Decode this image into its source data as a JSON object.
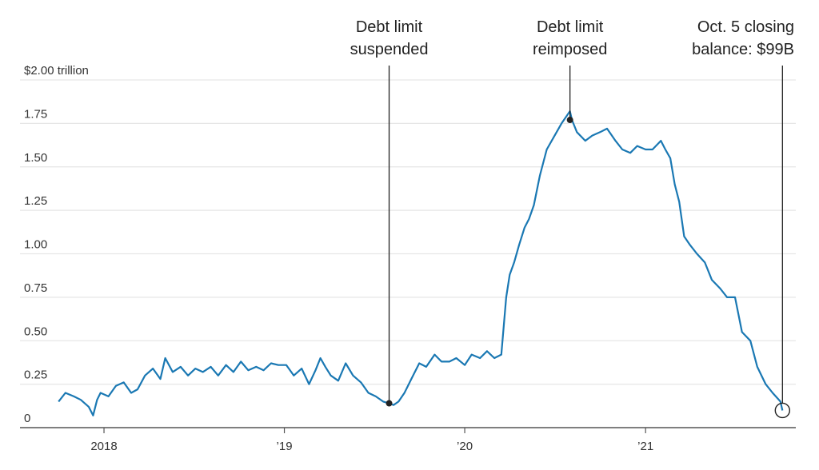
{
  "chart_data": {
    "type": "line",
    "title": "",
    "xlabel": "",
    "ylabel": "",
    "yunit_label": "$2.00 trillion",
    "ylim": [
      0,
      2.0
    ],
    "yticks": [
      {
        "value": 2.0,
        "label": "$2.00 trillion"
      },
      {
        "value": 1.75,
        "label": "1.75"
      },
      {
        "value": 1.5,
        "label": "1.50"
      },
      {
        "value": 1.25,
        "label": "1.25"
      },
      {
        "value": 1.0,
        "label": "1.00"
      },
      {
        "value": 0.75,
        "label": "0.75"
      },
      {
        "value": 0.5,
        "label": "0.50"
      },
      {
        "value": 0.25,
        "label": "0.25"
      },
      {
        "value": 0,
        "label": "0"
      }
    ],
    "xlim": [
      "2017-07-15",
      "2021-11-01"
    ],
    "xticks": [
      {
        "date": "2018-01-01",
        "label": "2018"
      },
      {
        "date": "2019-01-01",
        "label": "’19"
      },
      {
        "date": "2020-01-01",
        "label": "’20"
      },
      {
        "date": "2021-01-01",
        "label": "’21"
      }
    ],
    "grid": true,
    "series": [
      {
        "color": "#1a78b3",
        "x": [
          "2017-10-01",
          "2017-10-15",
          "2017-11-01",
          "2017-11-15",
          "2017-12-01",
          "2017-12-10",
          "2017-12-18",
          "2017-12-25",
          "2018-01-10",
          "2018-01-25",
          "2018-02-10",
          "2018-02-25",
          "2018-03-10",
          "2018-03-25",
          "2018-04-10",
          "2018-04-25",
          "2018-05-05",
          "2018-05-20",
          "2018-06-05",
          "2018-06-20",
          "2018-07-05",
          "2018-07-20",
          "2018-08-05",
          "2018-08-20",
          "2018-09-05",
          "2018-09-20",
          "2018-10-05",
          "2018-10-20",
          "2018-11-05",
          "2018-11-20",
          "2018-12-05",
          "2018-12-20",
          "2019-01-05",
          "2019-01-20",
          "2019-02-05",
          "2019-02-20",
          "2019-03-05",
          "2019-03-15",
          "2019-03-25",
          "2019-04-05",
          "2019-04-20",
          "2019-05-05",
          "2019-05-20",
          "2019-06-05",
          "2019-06-20",
          "2019-07-05",
          "2019-07-20",
          "2019-08-01",
          "2019-08-10",
          "2019-08-20",
          "2019-09-01",
          "2019-09-15",
          "2019-10-01",
          "2019-10-15",
          "2019-11-01",
          "2019-11-15",
          "2019-12-01",
          "2019-12-15",
          "2020-01-01",
          "2020-01-15",
          "2020-02-01",
          "2020-02-15",
          "2020-03-01",
          "2020-03-15",
          "2020-03-25",
          "2020-04-01",
          "2020-04-10",
          "2020-04-20",
          "2020-05-01",
          "2020-05-10",
          "2020-05-20",
          "2020-06-01",
          "2020-06-15",
          "2020-07-01",
          "2020-07-15",
          "2020-08-01",
          "2020-08-05",
          "2020-08-15",
          "2020-09-01",
          "2020-09-15",
          "2020-10-01",
          "2020-10-15",
          "2020-11-01",
          "2020-11-15",
          "2020-12-01",
          "2020-12-15",
          "2021-01-01",
          "2021-01-15",
          "2021-02-01",
          "2021-02-10",
          "2021-02-20",
          "2021-03-01",
          "2021-03-10",
          "2021-03-20",
          "2021-04-01",
          "2021-04-15",
          "2021-05-01",
          "2021-05-15",
          "2021-06-01",
          "2021-06-15",
          "2021-07-01",
          "2021-07-15",
          "2021-08-01",
          "2021-08-15",
          "2021-09-01",
          "2021-09-15",
          "2021-10-01",
          "2021-10-05"
        ],
        "values": [
          0.15,
          0.2,
          0.18,
          0.16,
          0.12,
          0.07,
          0.16,
          0.2,
          0.18,
          0.24,
          0.26,
          0.2,
          0.22,
          0.3,
          0.34,
          0.28,
          0.4,
          0.32,
          0.35,
          0.3,
          0.34,
          0.32,
          0.35,
          0.3,
          0.36,
          0.32,
          0.38,
          0.33,
          0.35,
          0.33,
          0.37,
          0.36,
          0.36,
          0.3,
          0.34,
          0.25,
          0.33,
          0.4,
          0.35,
          0.3,
          0.27,
          0.37,
          0.3,
          0.26,
          0.2,
          0.18,
          0.15,
          0.14,
          0.13,
          0.15,
          0.2,
          0.28,
          0.37,
          0.35,
          0.42,
          0.38,
          0.38,
          0.4,
          0.36,
          0.42,
          0.4,
          0.44,
          0.4,
          0.42,
          0.75,
          0.88,
          0.95,
          1.05,
          1.15,
          1.2,
          1.28,
          1.45,
          1.6,
          1.68,
          1.75,
          1.82,
          1.77,
          1.7,
          1.65,
          1.68,
          1.7,
          1.72,
          1.65,
          1.6,
          1.58,
          1.62,
          1.6,
          1.6,
          1.65,
          1.6,
          1.55,
          1.4,
          1.3,
          1.1,
          1.05,
          1.0,
          0.95,
          0.85,
          0.8,
          0.75,
          0.75,
          0.55,
          0.5,
          0.35,
          0.25,
          0.2,
          0.15,
          0.099
        ]
      }
    ],
    "annotations": [
      {
        "lines": [
          "Debt limit",
          "suspended"
        ],
        "date": "2019-08-01",
        "value": 0.14,
        "marker": "dot"
      },
      {
        "lines": [
          "Debt limit",
          "reimposed"
        ],
        "date": "2020-08-01",
        "value": 1.77,
        "marker": "dot"
      },
      {
        "lines": [
          "Oct. 5 closing",
          "balance: $99B"
        ],
        "date": "2021-10-05",
        "value": 0.099,
        "marker": "circle"
      }
    ]
  }
}
